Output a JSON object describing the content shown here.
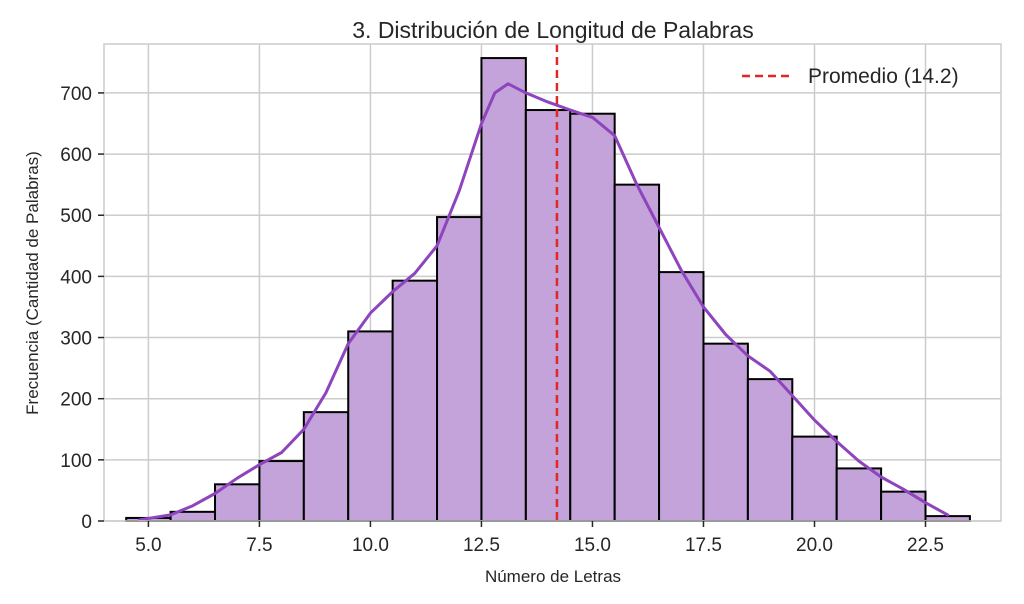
{
  "chart_data": {
    "type": "bar",
    "title": "3. Distribución de Longitud de Palabras",
    "xlabel": "Número de Letras",
    "ylabel": "Frecuencia (Cantidad de Palabras)",
    "xlim": [
      4.0,
      24.2
    ],
    "ylim": [
      0,
      780
    ],
    "xticks": [
      5.0,
      7.5,
      10.0,
      12.5,
      15.0,
      17.5,
      20.0,
      22.5
    ],
    "xtick_labels": [
      "5.0",
      "7.5",
      "10.0",
      "12.5",
      "15.0",
      "17.5",
      "20.0",
      "22.5"
    ],
    "yticks": [
      0,
      100,
      200,
      300,
      400,
      500,
      600,
      700
    ],
    "ytick_labels": [
      "0",
      "100",
      "200",
      "300",
      "400",
      "500",
      "600",
      "700"
    ],
    "grid": true,
    "bin_edges": [
      4.5,
      5.5,
      6.5,
      7.5,
      8.5,
      9.5,
      10.5,
      11.5,
      12.5,
      13.5,
      14.5,
      15.5,
      16.5,
      17.5,
      18.5,
      19.5,
      20.5,
      21.5,
      22.5,
      23.5
    ],
    "values": [
      5,
      15,
      60,
      98,
      178,
      310,
      393,
      497,
      757,
      672,
      666,
      550,
      407,
      290,
      232,
      138,
      86,
      48,
      8
    ],
    "kde": {
      "x": [
        4.8,
        5.5,
        6.0,
        6.5,
        7.0,
        7.5,
        8.0,
        8.5,
        9.0,
        9.5,
        10.0,
        10.5,
        11.0,
        11.5,
        12.0,
        12.5,
        12.8,
        13.1,
        13.5,
        14.0,
        14.5,
        15.0,
        15.5,
        16.0,
        16.5,
        17.0,
        17.5,
        18.0,
        18.5,
        19.0,
        19.5,
        20.0,
        20.5,
        21.0,
        21.5,
        22.0,
        22.5,
        23.0
      ],
      "y": [
        2,
        10,
        25,
        45,
        70,
        92,
        112,
        150,
        210,
        290,
        340,
        375,
        405,
        450,
        540,
        650,
        700,
        715,
        700,
        685,
        672,
        660,
        630,
        550,
        480,
        410,
        350,
        305,
        270,
        245,
        205,
        165,
        130,
        98,
        72,
        52,
        30,
        10
      ]
    },
    "mean_line": {
      "x": 14.2,
      "label": "Promedio (14.2)"
    },
    "legend_placement": "top-right",
    "colors": {
      "bar_fill": "#c3a3d9",
      "bar_edge": "#000000",
      "kde": "#8e44bd",
      "mean": "#e32626",
      "grid": "#cccccc",
      "spine": "#cccccc"
    }
  }
}
